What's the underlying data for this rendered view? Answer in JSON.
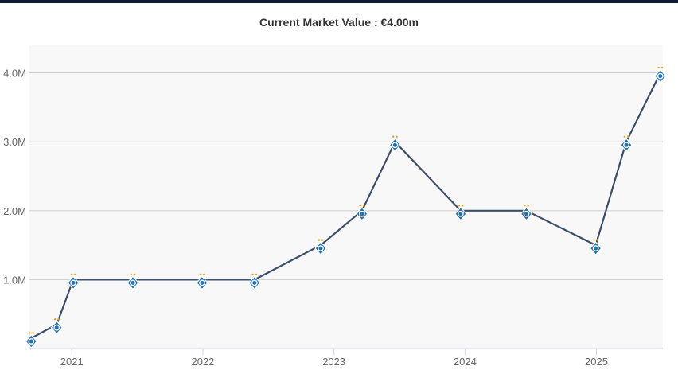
{
  "chart_data": {
    "type": "line",
    "title": "Current Market Value : €4.00m",
    "xlabel": "",
    "ylabel": "",
    "x_ticks": [
      "2021",
      "2022",
      "2023",
      "2024",
      "2025"
    ],
    "y_ticks": [
      "1.0M",
      "2.0M",
      "3.0M",
      "4.0M"
    ],
    "ylim": [
      0,
      4.4
    ],
    "xlim": [
      "2020-09-05",
      "2025-07-05"
    ],
    "grid": "horizontal",
    "legend": "none",
    "series": [
      {
        "marker": "club-crest-icon",
        "points": [
          {
            "x": "2020-09-10",
            "y": 0.15
          },
          {
            "x": "2020-11-20",
            "y": 0.35
          },
          {
            "x": "2021-01-05",
            "y": 1.0
          },
          {
            "x": "2021-06-20",
            "y": 1.0
          },
          {
            "x": "2021-12-30",
            "y": 1.0
          },
          {
            "x": "2022-05-25",
            "y": 1.0
          },
          {
            "x": "2022-11-25",
            "y": 1.5
          },
          {
            "x": "2023-03-20",
            "y": 2.0
          },
          {
            "x": "2023-06-20",
            "y": 3.0
          },
          {
            "x": "2023-12-20",
            "y": 2.0
          },
          {
            "x": "2024-06-20",
            "y": 2.0
          },
          {
            "x": "2024-12-30",
            "y": 1.5
          },
          {
            "x": "2025-03-25",
            "y": 3.0
          },
          {
            "x": "2025-06-28",
            "y": 4.0
          }
        ]
      }
    ],
    "colors": {
      "line": "#3b4f6b",
      "grid": "#cccccc",
      "plot_bg": "#f8f8f8",
      "marker_fill": "#1f6fb5",
      "marker_star": "#e5a21a"
    }
  }
}
